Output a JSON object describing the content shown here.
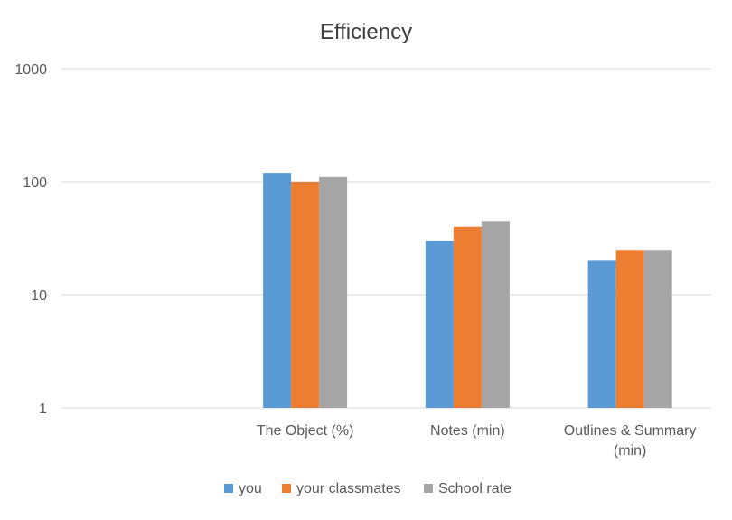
{
  "chart_data": {
    "type": "bar",
    "title": "Efficiency",
    "y_scale": "log",
    "ylim": [
      1,
      1000
    ],
    "y_ticks": [
      "1",
      "10",
      "100",
      "1000"
    ],
    "grid": true,
    "legend_position": "bottom",
    "categories": [
      "",
      [
        "The Object (%)"
      ],
      [
        "Notes (min)"
      ],
      [
        "Outlines & Summary",
        "(min)"
      ]
    ],
    "series": [
      {
        "name": "you",
        "color": "#5B9BD5",
        "values": [
          null,
          120,
          30,
          20
        ]
      },
      {
        "name": "your classmates",
        "color": "#ED7D31",
        "values": [
          null,
          100,
          40,
          25
        ]
      },
      {
        "name": "School rate",
        "color": "#A5A5A5",
        "values": [
          null,
          110,
          45,
          25
        ]
      }
    ]
  }
}
